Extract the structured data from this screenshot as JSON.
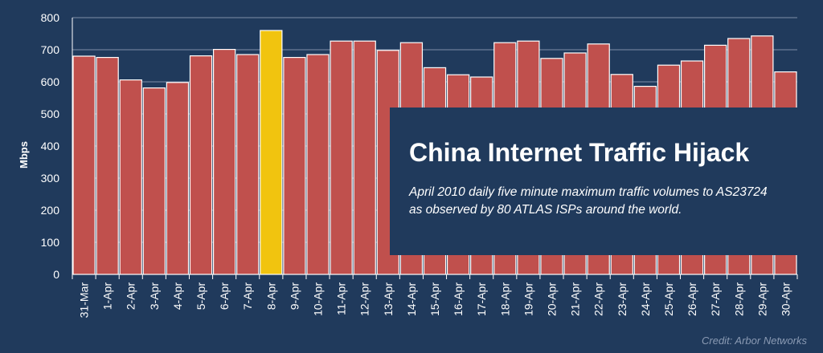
{
  "chart_data": {
    "type": "bar",
    "title": "China Internet Traffic Hijack",
    "subtitle": "April 2010 daily five minute maximum traffic volumes to AS23724 as observed by 80 ATLAS ISPs around the world.",
    "ylabel": "Mbps",
    "xlabel": "",
    "ylim": [
      0,
      800
    ],
    "yticks": [
      "0",
      "100",
      "200",
      "300",
      "400",
      "500",
      "600",
      "700",
      "800"
    ],
    "grid": true,
    "highlight_category": "8-Apr",
    "categories": [
      "31-Mar",
      "1-Apr",
      "2-Apr",
      "3-Apr",
      "4-Apr",
      "5-Apr",
      "6-Apr",
      "7-Apr",
      "8-Apr",
      "9-Apr",
      "10-Apr",
      "11-Apr",
      "12-Apr",
      "13-Apr",
      "14-Apr",
      "15-Apr",
      "16-Apr",
      "17-Apr",
      "18-Apr",
      "19-Apr",
      "20-Apr",
      "21-Apr",
      "22-Apr",
      "23-Apr",
      "24-Apr",
      "25-Apr",
      "26-Apr",
      "27-Apr",
      "28-Apr",
      "29-Apr",
      "30-Apr"
    ],
    "values": [
      680,
      676,
      606,
      581,
      598,
      681,
      701,
      685,
      760,
      676,
      685,
      727,
      727,
      698,
      722,
      644,
      622,
      615,
      722,
      727,
      673,
      690,
      718,
      623,
      586,
      652,
      665,
      714,
      735,
      743,
      631
    ],
    "colors": {
      "bar": "#c0504d",
      "highlight": "#f1c40f",
      "background": "#203a5c",
      "grid": "#7e8fa8"
    }
  },
  "credit": "Credit: Arbor Networks"
}
